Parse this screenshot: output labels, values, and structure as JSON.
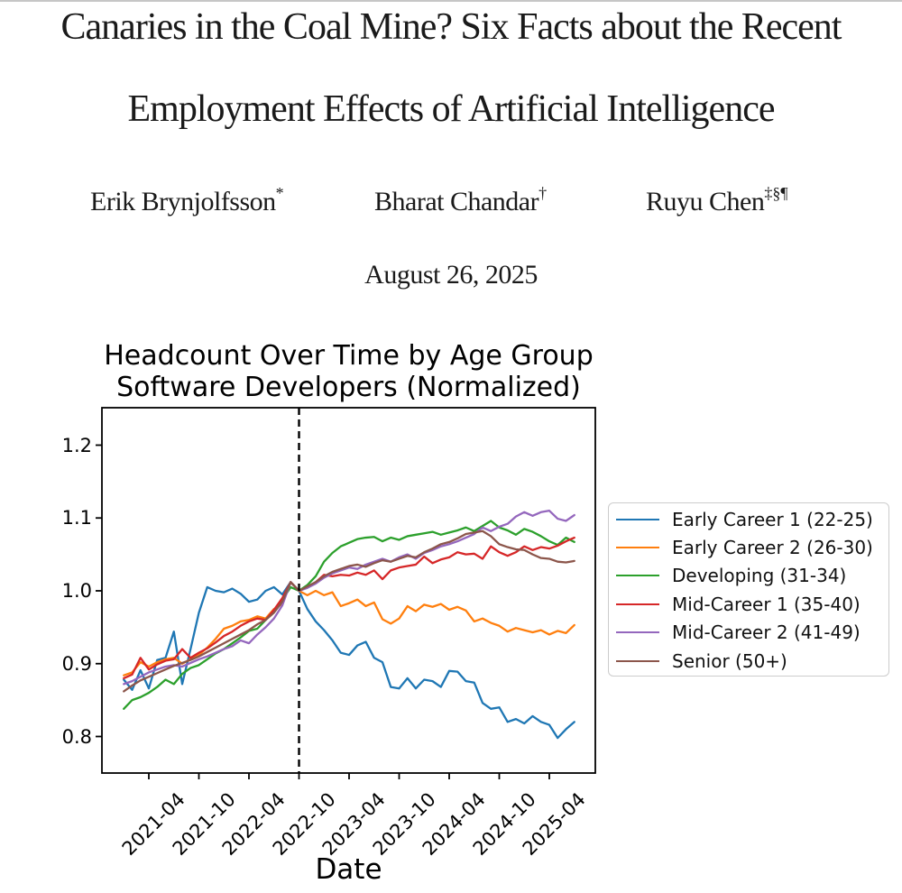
{
  "paper": {
    "title_line1": "Canaries in the Coal Mine? Six Facts about the Recent",
    "title_line2": "Employment Effects of Artificial Intelligence",
    "authors": [
      {
        "name": "Erik Brynjolfsson",
        "superscript": "*"
      },
      {
        "name": "Bharat Chandar",
        "superscript": "†"
      },
      {
        "name": "Ruyu Chen",
        "superscript": "‡§¶"
      }
    ],
    "date": "August 26, 2025"
  },
  "chart_data": {
    "type": "line",
    "title_lines": [
      "Headcount Over Time by Age Group",
      "Software Developers (Normalized)"
    ],
    "xlabel": "Date",
    "ylabel": "",
    "ylim": [
      0.75,
      1.25
    ],
    "grid": false,
    "legend_position": "right of plot",
    "y_tick_labels": [
      "0.8",
      "0.9",
      "1.0",
      "1.1",
      "1.2"
    ],
    "x_tick_labels": [
      "2021-04",
      "2021-10",
      "2022-04",
      "2022-10",
      "2023-04",
      "2023-10",
      "2024-04",
      "2024-10",
      "2025-04"
    ],
    "vline": {
      "x": "2022-10",
      "style": "dashed",
      "color": "#000000"
    },
    "x_monthly": [
      "2021-01",
      "2021-02",
      "2021-03",
      "2021-04",
      "2021-05",
      "2021-06",
      "2021-07",
      "2021-08",
      "2021-09",
      "2021-10",
      "2021-11",
      "2021-12",
      "2022-01",
      "2022-02",
      "2022-03",
      "2022-04",
      "2022-05",
      "2022-06",
      "2022-07",
      "2022-08",
      "2022-09",
      "2022-10",
      "2022-11",
      "2022-12",
      "2023-01",
      "2023-02",
      "2023-03",
      "2023-04",
      "2023-05",
      "2023-06",
      "2023-07",
      "2023-08",
      "2023-09",
      "2023-10",
      "2023-11",
      "2023-12",
      "2024-01",
      "2024-02",
      "2024-03",
      "2024-04",
      "2024-05",
      "2024-06",
      "2024-07",
      "2024-08",
      "2024-09",
      "2024-10",
      "2024-11",
      "2024-12",
      "2025-01",
      "2025-02",
      "2025-03",
      "2025-04",
      "2025-05",
      "2025-06",
      "2025-07"
    ],
    "series": [
      {
        "name": "Early Career 1 (22-25)",
        "color": "#1f77b4",
        "values": [
          0.878,
          0.864,
          0.891,
          0.866,
          0.905,
          0.908,
          0.944,
          0.872,
          0.92,
          0.97,
          1.005,
          1.0,
          0.998,
          1.003,
          0.996,
          0.985,
          0.988,
          1.0,
          1.005,
          0.995,
          1.012,
          1.0,
          0.975,
          0.958,
          0.946,
          0.932,
          0.915,
          0.912,
          0.925,
          0.93,
          0.908,
          0.902,
          0.868,
          0.866,
          0.88,
          0.866,
          0.878,
          0.876,
          0.868,
          0.89,
          0.889,
          0.876,
          0.874,
          0.846,
          0.838,
          0.84,
          0.82,
          0.824,
          0.818,
          0.828,
          0.82,
          0.816,
          0.798,
          0.81,
          0.82
        ]
      },
      {
        "name": "Early Career 2 (26-30)",
        "color": "#ff7f0e",
        "values": [
          0.884,
          0.888,
          0.902,
          0.896,
          0.902,
          0.906,
          0.908,
          0.9,
          0.906,
          0.912,
          0.922,
          0.934,
          0.948,
          0.952,
          0.958,
          0.96,
          0.965,
          0.962,
          0.975,
          0.982,
          1.012,
          1.0,
          0.994,
          1.0,
          0.994,
          0.998,
          0.979,
          0.983,
          0.988,
          0.979,
          0.984,
          0.961,
          0.955,
          0.962,
          0.979,
          0.972,
          0.981,
          0.978,
          0.982,
          0.974,
          0.978,
          0.973,
          0.958,
          0.962,
          0.956,
          0.952,
          0.944,
          0.949,
          0.946,
          0.943,
          0.946,
          0.94,
          0.945,
          0.942,
          0.953
        ]
      },
      {
        "name": "Developing (31-34)",
        "color": "#2ca02c",
        "values": [
          0.838,
          0.85,
          0.854,
          0.86,
          0.868,
          0.878,
          0.872,
          0.886,
          0.894,
          0.898,
          0.906,
          0.914,
          0.92,
          0.928,
          0.936,
          0.945,
          0.948,
          0.96,
          0.972,
          0.988,
          1.005,
          1.0,
          1.008,
          1.02,
          1.04,
          1.052,
          1.061,
          1.066,
          1.071,
          1.073,
          1.074,
          1.068,
          1.073,
          1.07,
          1.075,
          1.077,
          1.079,
          1.081,
          1.077,
          1.08,
          1.083,
          1.087,
          1.082,
          1.089,
          1.096,
          1.087,
          1.083,
          1.077,
          1.085,
          1.081,
          1.075,
          1.068,
          1.063,
          1.073,
          1.067
        ]
      },
      {
        "name": "Mid-Career 1 (35-40)",
        "color": "#d62728",
        "values": [
          0.88,
          0.885,
          0.908,
          0.892,
          0.899,
          0.904,
          0.906,
          0.92,
          0.908,
          0.915,
          0.921,
          0.929,
          0.938,
          0.944,
          0.952,
          0.958,
          0.962,
          0.96,
          0.974,
          0.99,
          1.012,
          1.0,
          1.005,
          1.012,
          1.022,
          1.02,
          1.022,
          1.021,
          1.025,
          1.022,
          1.028,
          1.016,
          1.028,
          1.032,
          1.034,
          1.036,
          1.047,
          1.038,
          1.043,
          1.046,
          1.053,
          1.05,
          1.051,
          1.044,
          1.061,
          1.053,
          1.048,
          1.053,
          1.061,
          1.056,
          1.06,
          1.058,
          1.062,
          1.068,
          1.073
        ]
      },
      {
        "name": "Mid-Career 2 (41-49)",
        "color": "#9467bd",
        "values": [
          0.872,
          0.876,
          0.882,
          0.888,
          0.892,
          0.896,
          0.898,
          0.896,
          0.901,
          0.906,
          0.91,
          0.915,
          0.92,
          0.924,
          0.932,
          0.928,
          0.94,
          0.95,
          0.962,
          0.98,
          1.012,
          1.0,
          1.004,
          1.01,
          1.018,
          1.024,
          1.028,
          1.032,
          1.03,
          1.036,
          1.04,
          1.044,
          1.04,
          1.046,
          1.05,
          1.044,
          1.052,
          1.056,
          1.061,
          1.064,
          1.068,
          1.073,
          1.078,
          1.087,
          1.082,
          1.088,
          1.092,
          1.102,
          1.108,
          1.103,
          1.108,
          1.11,
          1.099,
          1.096,
          1.104
        ]
      },
      {
        "name": "Senior (50+)",
        "color": "#8c564b",
        "values": [
          0.862,
          0.87,
          0.877,
          0.882,
          0.887,
          0.892,
          0.897,
          0.901,
          0.905,
          0.91,
          0.916,
          0.922,
          0.928,
          0.934,
          0.94,
          0.946,
          0.954,
          0.96,
          0.97,
          0.985,
          1.012,
          1.0,
          1.006,
          1.012,
          1.02,
          1.026,
          1.03,
          1.034,
          1.036,
          1.033,
          1.038,
          1.042,
          1.04,
          1.044,
          1.048,
          1.046,
          1.053,
          1.058,
          1.064,
          1.067,
          1.072,
          1.078,
          1.08,
          1.082,
          1.075,
          1.064,
          1.06,
          1.057,
          1.056,
          1.05,
          1.045,
          1.044,
          1.04,
          1.039,
          1.041
        ]
      }
    ]
  }
}
